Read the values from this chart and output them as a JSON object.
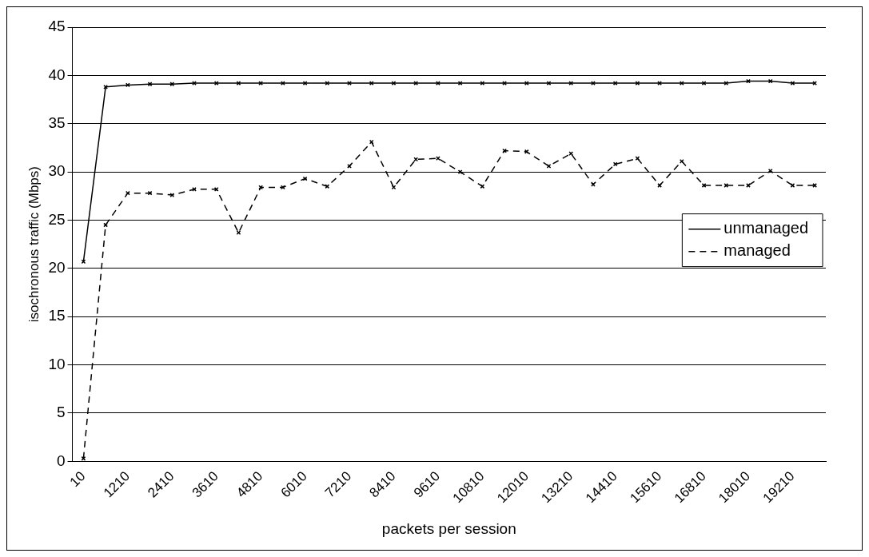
{
  "chart_data": {
    "type": "line",
    "xlabel": "packets per session",
    "ylabel": "isochronous traffic (Mbps)",
    "categories": [
      "10",
      null,
      "1210",
      null,
      "2410",
      null,
      "3610",
      null,
      "4810",
      null,
      "6010",
      null,
      "7210",
      null,
      "8410",
      null,
      "9610",
      null,
      "10810",
      null,
      "12010",
      null,
      "13210",
      null,
      "14410",
      null,
      "15610",
      null,
      "16810",
      null,
      "18010",
      null,
      "19210",
      null
    ],
    "series": [
      {
        "name": "unmanaged",
        "color": "#000000",
        "line_style": "solid",
        "marker": "cross",
        "values": [
          20.7,
          38.8,
          39.0,
          39.1,
          39.1,
          39.2,
          39.2,
          39.2,
          39.2,
          39.2,
          39.2,
          39.2,
          39.2,
          39.2,
          39.2,
          39.2,
          39.2,
          39.2,
          39.2,
          39.2,
          39.2,
          39.2,
          39.2,
          39.2,
          39.2,
          39.2,
          39.2,
          39.2,
          39.2,
          39.2,
          39.4,
          39.4,
          39.2,
          39.2
        ]
      },
      {
        "name": "managed",
        "color": "#000000",
        "line_style": "dashed",
        "marker": "cross",
        "values": [
          0.3,
          24.5,
          27.8,
          27.8,
          27.6,
          28.2,
          28.2,
          23.7,
          28.4,
          28.4,
          29.3,
          28.5,
          30.6,
          33.1,
          28.4,
          31.3,
          31.4,
          30.0,
          28.5,
          32.2,
          32.1,
          30.6,
          31.9,
          28.7,
          30.8,
          31.4,
          28.6,
          31.1,
          28.6,
          28.6,
          28.6,
          30.1,
          28.6,
          28.6
        ]
      }
    ],
    "ylim": [
      0,
      45
    ],
    "yticks": [
      0,
      5,
      10,
      15,
      20,
      25,
      30,
      35,
      40,
      45
    ],
    "grid": "y",
    "legend": "right"
  }
}
